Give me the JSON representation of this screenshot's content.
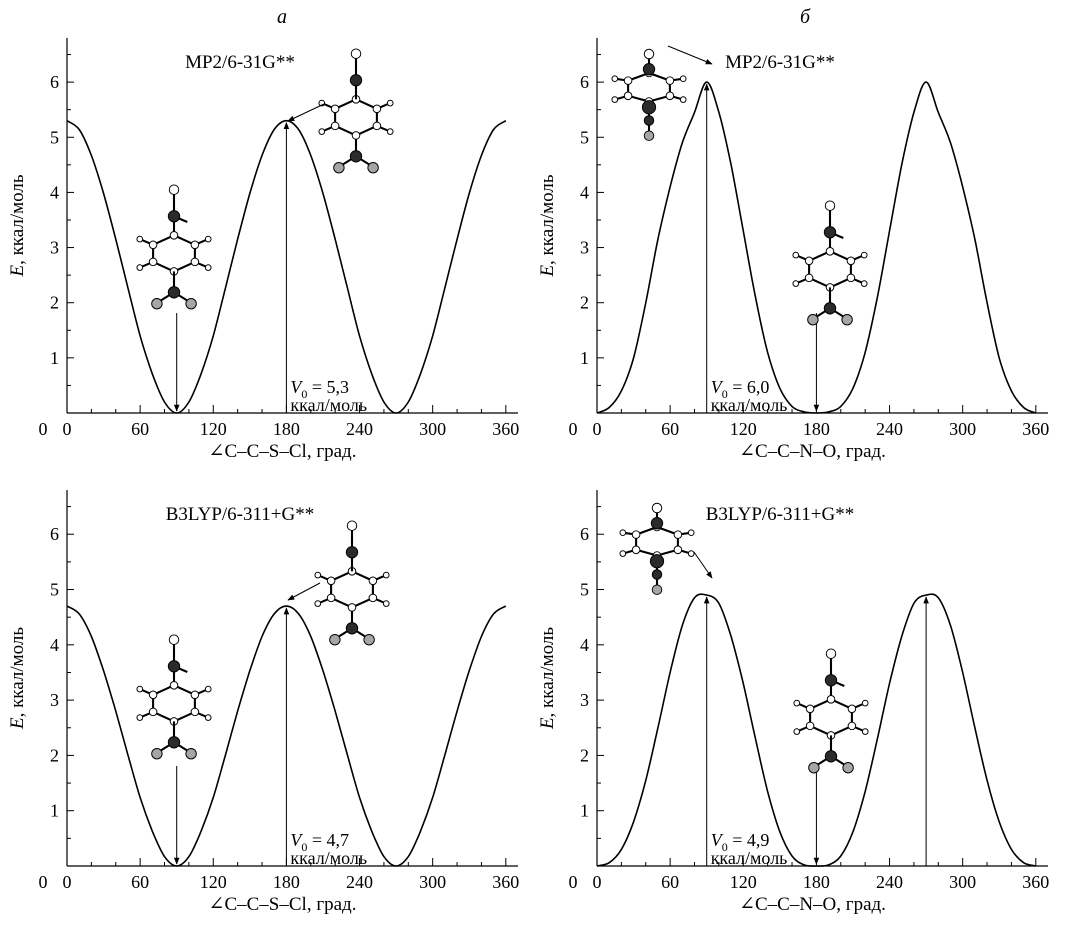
{
  "column_labels": [
    "а",
    "б"
  ],
  "chart_data": [
    {
      "id": "a-top",
      "type": "line",
      "method": "MP2/6-31G**",
      "xlabel": "∠C–C–S–Cl, град.",
      "ylabel_var": "E",
      "ylabel_unit": ", ккал/моль",
      "xlim": [
        0,
        370
      ],
      "ylim": [
        0,
        6.8
      ],
      "xticks": [
        0,
        60,
        120,
        180,
        240,
        300,
        360
      ],
      "yticks": [
        1,
        2,
        3,
        4,
        5,
        6
      ],
      "series": [
        {
          "x": [
            0,
            10,
            20,
            30,
            40,
            50,
            60,
            70,
            80,
            90,
            100,
            110,
            120,
            130,
            140,
            150,
            160,
            170,
            180,
            190,
            200,
            210,
            220,
            230,
            240,
            250,
            260,
            270,
            280,
            290,
            300,
            310,
            320,
            330,
            340,
            350,
            360
          ],
          "y": [
            5.3,
            5.14,
            4.67,
            3.98,
            3.15,
            2.27,
            1.4,
            0.71,
            0.2,
            0,
            0.2,
            0.71,
            1.4,
            2.27,
            3.15,
            3.98,
            4.67,
            5.14,
            5.3,
            5.14,
            4.67,
            3.98,
            3.15,
            2.27,
            1.4,
            0.71,
            0.2,
            0,
            0.2,
            0.71,
            1.4,
            2.27,
            3.15,
            3.98,
            4.67,
            5.14,
            5.3
          ]
        }
      ],
      "barrier": {
        "label_var": "V",
        "label_sub": "0",
        "label_value": " = 5,3",
        "label_unit": "ккал/моль",
        "value": 5.3,
        "x": 180
      },
      "minimum_marker_x": 90
    },
    {
      "id": "b-top",
      "type": "line",
      "method": "MP2/6-31G**",
      "xlabel": "∠C–C–N–O, град.",
      "ylabel_var": "E",
      "ylabel_unit": ", ккал/моль",
      "xlim": [
        0,
        370
      ],
      "ylim": [
        0,
        6.8
      ],
      "xticks": [
        0,
        60,
        120,
        180,
        240,
        300,
        360
      ],
      "yticks": [
        1,
        2,
        3,
        4,
        5,
        6
      ],
      "series": [
        {
          "x": [
            0,
            10,
            20,
            30,
            40,
            50,
            60,
            70,
            80,
            90,
            100,
            110,
            120,
            130,
            140,
            150,
            160,
            170,
            180,
            190,
            200,
            210,
            220,
            230,
            240,
            250,
            260,
            270,
            280,
            290,
            300,
            310,
            320,
            330,
            340,
            350,
            360
          ],
          "y": [
            0,
            0.1,
            0.4,
            1.0,
            2.0,
            3.15,
            4.1,
            4.9,
            5.45,
            6.0,
            5.45,
            4.5,
            3.3,
            2.1,
            1.1,
            0.45,
            0.12,
            0.02,
            0,
            0.02,
            0.12,
            0.45,
            1.1,
            2.1,
            3.3,
            4.5,
            5.45,
            6.0,
            5.45,
            4.9,
            4.1,
            3.15,
            2.0,
            1.0,
            0.4,
            0.1,
            0
          ]
        }
      ],
      "barrier": {
        "label_var": "V",
        "label_sub": "0",
        "label_value": " = 6,0",
        "label_unit": "ккал/моль",
        "value": 6.0,
        "x": 90
      },
      "minimum_marker_x": 180
    },
    {
      "id": "a-bottom",
      "type": "line",
      "method": "B3LYP/6-311+G**",
      "xlabel": "∠C–C–S–Cl, град.",
      "ylabel_var": "E",
      "ylabel_unit": ", ккал/моль",
      "xlim": [
        0,
        370
      ],
      "ylim": [
        0,
        6.8
      ],
      "xticks": [
        0,
        60,
        120,
        180,
        240,
        300,
        360
      ],
      "yticks": [
        1,
        2,
        3,
        4,
        5,
        6
      ],
      "series": [
        {
          "x": [
            0,
            10,
            20,
            30,
            40,
            50,
            60,
            70,
            80,
            90,
            100,
            110,
            120,
            130,
            140,
            150,
            160,
            170,
            180,
            190,
            200,
            210,
            220,
            230,
            240,
            250,
            260,
            270,
            280,
            290,
            300,
            310,
            320,
            330,
            340,
            350,
            360
          ],
          "y": [
            4.7,
            4.56,
            4.15,
            3.53,
            2.8,
            2.01,
            1.24,
            0.63,
            0.17,
            0,
            0.17,
            0.63,
            1.24,
            2.01,
            2.8,
            3.53,
            4.15,
            4.56,
            4.7,
            4.56,
            4.15,
            3.53,
            2.8,
            2.01,
            1.24,
            0.63,
            0.17,
            0,
            0.17,
            0.63,
            1.24,
            2.01,
            2.8,
            3.53,
            4.15,
            4.56,
            4.7
          ]
        }
      ],
      "barrier": {
        "label_var": "V",
        "label_sub": "0",
        "label_value": " = 4,7",
        "label_unit": "ккал/моль",
        "value": 4.7,
        "x": 180
      },
      "minimum_marker_x": 90
    },
    {
      "id": "b-bottom",
      "type": "line",
      "method": "B3LYP/6-311+G**",
      "xlabel": "∠C–C–N–O, град.",
      "ylabel_var": "E",
      "ylabel_unit": ", ккал/моль",
      "xlim": [
        0,
        370
      ],
      "ylim": [
        0,
        6.8
      ],
      "xticks": [
        0,
        60,
        120,
        180,
        240,
        300,
        360
      ],
      "yticks": [
        1,
        2,
        3,
        4,
        5,
        6
      ],
      "series": [
        {
          "x": [
            0,
            10,
            20,
            30,
            40,
            50,
            60,
            70,
            80,
            90,
            100,
            110,
            120,
            130,
            140,
            150,
            160,
            170,
            180,
            190,
            200,
            210,
            220,
            230,
            240,
            250,
            260,
            270,
            280,
            290,
            300,
            310,
            320,
            330,
            340,
            350,
            360
          ],
          "y": [
            0,
            0.06,
            0.3,
            0.8,
            1.55,
            2.5,
            3.5,
            4.35,
            4.85,
            4.9,
            4.75,
            4.15,
            3.3,
            2.3,
            1.35,
            0.62,
            0.18,
            0.02,
            0,
            0.02,
            0.18,
            0.62,
            1.35,
            2.3,
            3.3,
            4.15,
            4.75,
            4.9,
            4.85,
            4.35,
            3.5,
            2.5,
            1.55,
            0.8,
            0.3,
            0.06,
            0
          ]
        }
      ],
      "barrier": {
        "label_var": "V",
        "label_sub": "0",
        "label_value": " = 4,9",
        "label_unit": "ккал/моль",
        "value": 4.9,
        "x": 90,
        "extra_arrow_x": 270
      },
      "minimum_marker_x": 180
    }
  ],
  "colors": {
    "axis": "#000000",
    "curve": "#000000",
    "atom_light": "#ffffff",
    "atom_dark": "#2b2b2b",
    "atom_grey": "#a6a6a6"
  },
  "molecules": [
    "chlorosulfanyl-benzene-ball-and-stick",
    "nitroso-benzene-ball-and-stick"
  ]
}
